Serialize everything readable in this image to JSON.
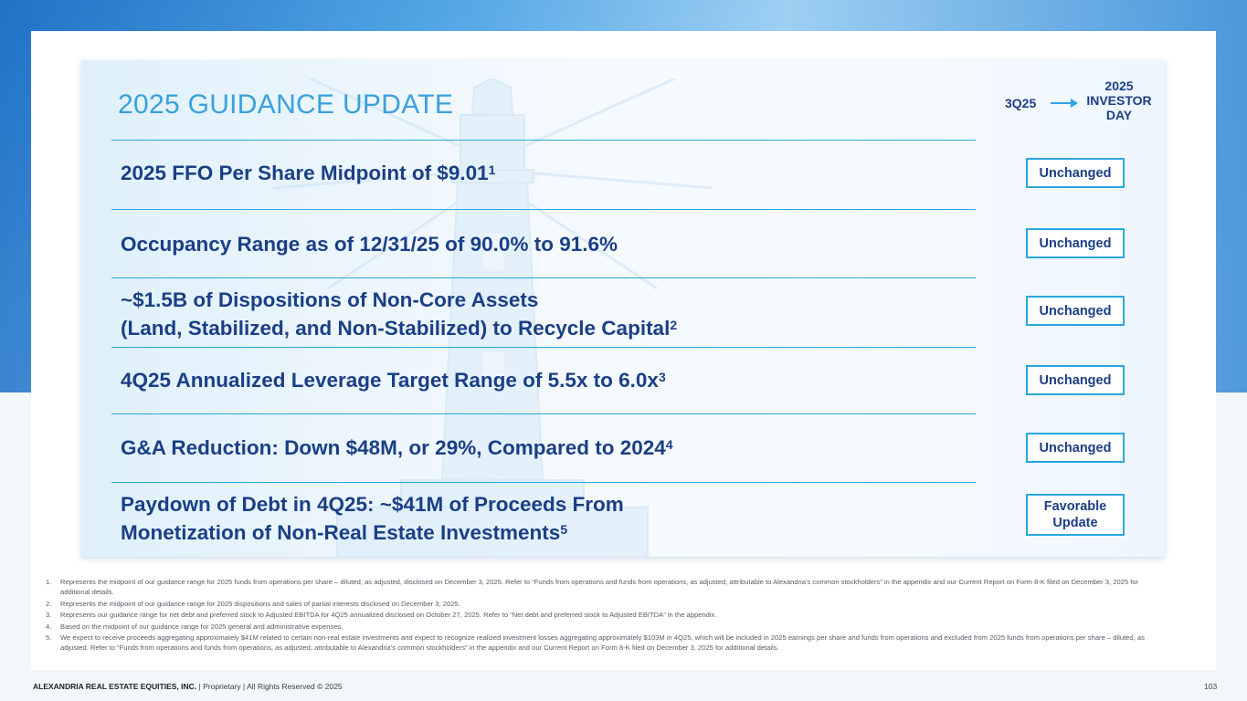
{
  "title": "2025 GUIDANCE UPDATE",
  "legend": {
    "from": "3Q25",
    "to_line1": "2025",
    "to_line2": "INVESTOR",
    "to_line3": "DAY"
  },
  "items": [
    {
      "text": "2025 FFO Per Share Midpoint of $9.01",
      "sup": "1",
      "status": "Unchanged"
    },
    {
      "text": "Occupancy Range as of 12/31/25 of 90.0% to 91.6%",
      "sup": "",
      "status": "Unchanged"
    },
    {
      "line1": "~$1.5B of Dispositions of Non-Core Assets",
      "line2": "(Land, Stabilized, and Non-Stabilized) to Recycle Capital",
      "sup": "2",
      "status": "Unchanged"
    },
    {
      "text": "4Q25 Annualized Leverage Target Range of 5.5x to 6.0x",
      "sup": "3",
      "status": "Unchanged"
    },
    {
      "text": "G&A Reduction: Down $48M, or 29%, Compared to 2024",
      "sup": "4",
      "status": "Unchanged"
    },
    {
      "line1": "Paydown of Debt in 4Q25: ~$41M of Proceeds From",
      "line2": "Monetization of Non-Real Estate Investments",
      "sup": "5",
      "status_line1": "Favorable",
      "status_line2": "Update"
    }
  ],
  "footnotes": [
    {
      "num": "1.",
      "text": "Represents the midpoint of our guidance range for 2025 funds from operations per share – diluted, as adjusted, disclosed on December 3, 2025. Refer to “Funds from operations and funds from operations, as adjusted, attributable to Alexandria’s common stockholders” in the appendix and our Current Report on Form 8-K filed on December 3, 2025 for additional details."
    },
    {
      "num": "2.",
      "text": "Represents the midpoint of our guidance range for 2025 dispositions and sales of partial interests disclosed on December 3, 2025."
    },
    {
      "num": "3.",
      "text": "Represents our guidance range for net debt and preferred stock to Adjusted EBITDA for 4Q25 annualized disclosed on October 27, 2025. Refer to “Net debt and preferred stock to Adjusted EBITDA” in the appendix."
    },
    {
      "num": "4.",
      "text": "Based on the midpoint of our guidance range for 2025 general and administrative expenses."
    },
    {
      "num": "5.",
      "text": "We expect to receive proceeds aggregating approximately $41M related to certain non-real estate investments and expect to recognize realized investment losses aggregating approximately $103M in 4Q25, which will be included in 2025 earnings per share and funds from operations and excluded from 2025 funds from operations per share – diluted, as adjusted. Refer to “Funds from operations and funds from operations, as adjusted, attributable to Alexandria’s common stockholders” in the appendix and our Current Report on Form 8-K filed on December 3, 2025 for additional details."
    }
  ],
  "footer": {
    "company": "ALEXANDRIA REAL ESTATE EQUITIES, INC.",
    "rest": " | Proprietary | All Rights Reserved © 2025"
  },
  "page_number": "103",
  "colors": {
    "navy": "#1b3f86",
    "accent": "#2aa7de",
    "title": "#3aa0dc"
  }
}
